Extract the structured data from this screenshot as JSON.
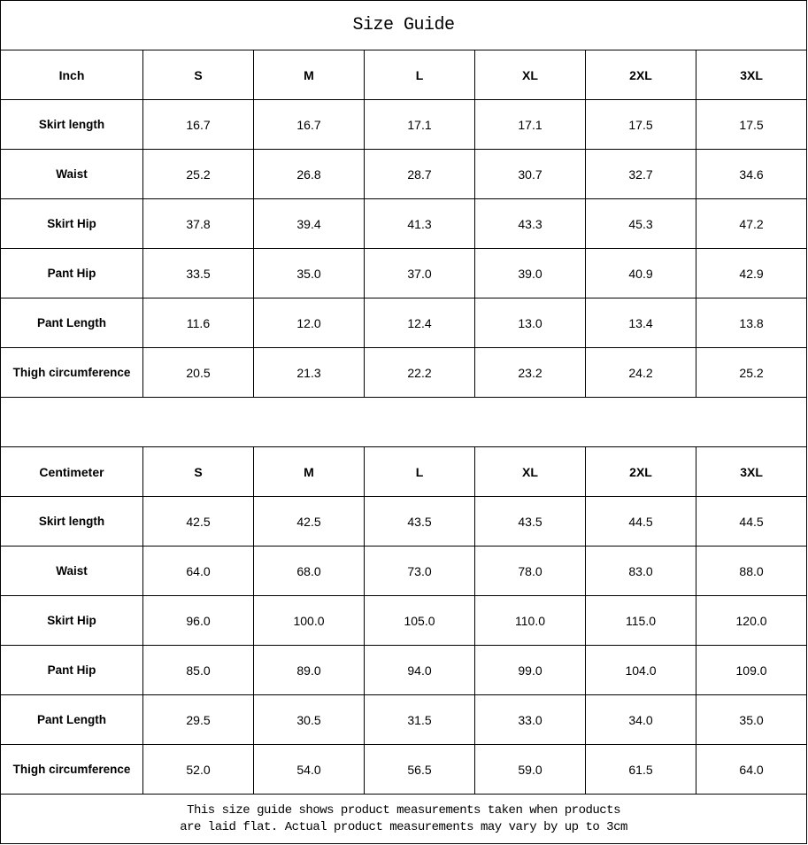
{
  "title": "Size Guide",
  "sizes": [
    "S",
    "M",
    "L",
    "XL",
    "2XL",
    "3XL"
  ],
  "tables": [
    {
      "unit": "Inch",
      "rows": [
        {
          "label": "Skirt length",
          "values": [
            "16.7",
            "16.7",
            "17.1",
            "17.1",
            "17.5",
            "17.5"
          ]
        },
        {
          "label": "Waist",
          "values": [
            "25.2",
            "26.8",
            "28.7",
            "30.7",
            "32.7",
            "34.6"
          ]
        },
        {
          "label": "Skirt Hip",
          "values": [
            "37.8",
            "39.4",
            "41.3",
            "43.3",
            "45.3",
            "47.2"
          ]
        },
        {
          "label": "Pant Hip",
          "values": [
            "33.5",
            "35.0",
            "37.0",
            "39.0",
            "40.9",
            "42.9"
          ]
        },
        {
          "label": "Pant Length",
          "values": [
            "11.6",
            "12.0",
            "12.4",
            "13.0",
            "13.4",
            "13.8"
          ]
        },
        {
          "label": "Thigh circumference",
          "values": [
            "20.5",
            "21.3",
            "22.2",
            "23.2",
            "24.2",
            "25.2"
          ]
        }
      ]
    },
    {
      "unit": "Centimeter",
      "rows": [
        {
          "label": "Skirt length",
          "values": [
            "42.5",
            "42.5",
            "43.5",
            "43.5",
            "44.5",
            "44.5"
          ]
        },
        {
          "label": "Waist",
          "values": [
            "64.0",
            "68.0",
            "73.0",
            "78.0",
            "83.0",
            "88.0"
          ]
        },
        {
          "label": "Skirt Hip",
          "values": [
            "96.0",
            "100.0",
            "105.0",
            "110.0",
            "115.0",
            "120.0"
          ]
        },
        {
          "label": "Pant Hip",
          "values": [
            "85.0",
            "89.0",
            "94.0",
            "99.0",
            "104.0",
            "109.0"
          ]
        },
        {
          "label": "Pant Length",
          "values": [
            "29.5",
            "30.5",
            "31.5",
            "33.0",
            "34.0",
            "35.0"
          ]
        },
        {
          "label": "Thigh circumference",
          "values": [
            "52.0",
            "54.0",
            "56.5",
            "59.0",
            "61.5",
            "64.0"
          ]
        }
      ]
    }
  ],
  "note_line1": "This size guide shows product measurements taken when products",
  "note_line2": "are laid flat. Actual product measurements may vary by up to 3cm"
}
